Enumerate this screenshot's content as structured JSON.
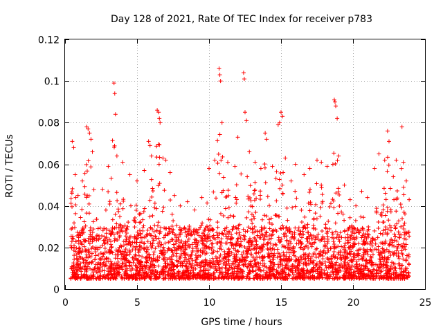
{
  "chart_data": {
    "type": "scatter",
    "title": "Day 128 of 2021, Rate Of TEC Index for receiver p783",
    "xlabel": "GPS time / hours",
    "ylabel": "ROTI / TECUs",
    "xlim": [
      0,
      25
    ],
    "ylim": [
      0,
      0.12
    ],
    "x_ticks": [
      0,
      5,
      10,
      15,
      20,
      25
    ],
    "x_tick_labels": [
      "0",
      "5",
      "10",
      "15",
      "20",
      "25"
    ],
    "y_ticks": [
      0,
      0.02,
      0.04,
      0.06,
      0.08,
      0.1,
      0.12
    ],
    "y_tick_labels": [
      "0",
      "0.02",
      "0.04",
      "0.06",
      "0.08",
      "0.1",
      "0.12"
    ],
    "grid": true,
    "marker": "+",
    "marker_color": "#ff0000",
    "x_range_observed": [
      0.4,
      23.9
    ],
    "baseline_band": [
      0.005,
      0.03
    ],
    "series": [
      {
        "name": "ROTI",
        "points": [
          [
            0.5,
            0.071
          ],
          [
            0.6,
            0.068
          ],
          [
            0.7,
            0.055
          ],
          [
            0.9,
            0.045
          ],
          [
            1.2,
            0.052
          ],
          [
            1.5,
            0.078
          ],
          [
            1.6,
            0.077
          ],
          [
            1.7,
            0.075
          ],
          [
            1.8,
            0.072
          ],
          [
            1.9,
            0.066
          ],
          [
            2.6,
            0.048
          ],
          [
            3.0,
            0.059
          ],
          [
            3.4,
            0.099
          ],
          [
            3.45,
            0.094
          ],
          [
            3.5,
            0.084
          ],
          [
            3.6,
            0.064
          ],
          [
            4.0,
            0.061
          ],
          [
            4.5,
            0.055
          ],
          [
            5.0,
            0.052
          ],
          [
            5.5,
            0.057
          ],
          [
            5.8,
            0.071
          ],
          [
            5.9,
            0.069
          ],
          [
            6.0,
            0.064
          ],
          [
            6.4,
            0.086
          ],
          [
            6.5,
            0.085
          ],
          [
            6.55,
            0.082
          ],
          [
            6.6,
            0.08
          ],
          [
            6.8,
            0.063
          ],
          [
            7.0,
            0.062
          ],
          [
            7.3,
            0.056
          ],
          [
            7.6,
            0.045
          ],
          [
            8.0,
            0.04
          ],
          [
            8.5,
            0.042
          ],
          [
            9.0,
            0.038
          ],
          [
            9.5,
            0.044
          ],
          [
            10.0,
            0.058
          ],
          [
            10.4,
            0.062
          ],
          [
            10.7,
            0.106
          ],
          [
            10.75,
            0.103
          ],
          [
            10.8,
            0.1
          ],
          [
            10.9,
            0.08
          ],
          [
            11.3,
            0.061
          ],
          [
            11.8,
            0.059
          ],
          [
            12.0,
            0.073
          ],
          [
            12.4,
            0.104
          ],
          [
            12.45,
            0.101
          ],
          [
            12.5,
            0.085
          ],
          [
            12.6,
            0.081
          ],
          [
            12.8,
            0.066
          ],
          [
            13.2,
            0.061
          ],
          [
            13.6,
            0.058
          ],
          [
            13.9,
            0.075
          ],
          [
            14.0,
            0.072
          ],
          [
            14.4,
            0.059
          ],
          [
            14.8,
            0.079
          ],
          [
            14.9,
            0.08
          ],
          [
            15.0,
            0.085
          ],
          [
            15.1,
            0.083
          ],
          [
            15.3,
            0.063
          ],
          [
            15.7,
            0.052
          ],
          [
            16.0,
            0.06
          ],
          [
            16.6,
            0.055
          ],
          [
            17.0,
            0.058
          ],
          [
            17.5,
            0.062
          ],
          [
            17.8,
            0.061
          ],
          [
            18.2,
            0.059
          ],
          [
            18.6,
            0.06
          ],
          [
            18.7,
            0.091
          ],
          [
            18.75,
            0.09
          ],
          [
            18.8,
            0.088
          ],
          [
            18.9,
            0.082
          ],
          [
            19.0,
            0.064
          ],
          [
            19.4,
            0.05
          ],
          [
            19.8,
            0.043
          ],
          [
            20.2,
            0.04
          ],
          [
            20.6,
            0.047
          ],
          [
            21.0,
            0.044
          ],
          [
            21.5,
            0.058
          ],
          [
            21.8,
            0.065
          ],
          [
            22.2,
            0.062
          ],
          [
            22.4,
            0.076
          ],
          [
            22.5,
            0.071
          ],
          [
            22.8,
            0.054
          ],
          [
            23.0,
            0.062
          ],
          [
            23.4,
            0.078
          ],
          [
            23.5,
            0.061
          ],
          [
            23.7,
            0.052
          ],
          [
            23.9,
            0.043
          ]
        ]
      }
    ]
  }
}
